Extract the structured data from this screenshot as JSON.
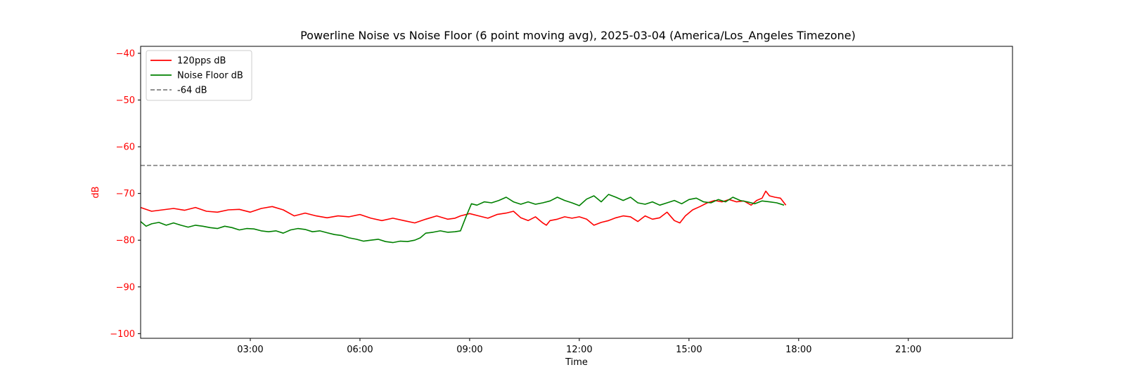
{
  "chart_data": {
    "type": "line",
    "title": "Powerline Noise vs Noise Floor (6 point moving avg), 2025-03-04 (America/Los_Angeles Timezone)",
    "xlabel": "Time",
    "ylabel": "dB",
    "ylabel_color": "#ff0000",
    "ytick_color": "#ff0000",
    "xlim": [
      0.0,
      23.85
    ],
    "ylim": [
      -101.0,
      -38.5
    ],
    "x_ticks": [
      3,
      6,
      9,
      12,
      15,
      18,
      21
    ],
    "x_tick_labels": [
      "03:00",
      "06:00",
      "09:00",
      "12:00",
      "15:00",
      "18:00",
      "21:00"
    ],
    "y_ticks": [
      -100,
      -90,
      -80,
      -70,
      -60,
      -50,
      -40
    ],
    "y_tick_labels": [
      "−100",
      "−90",
      "−80",
      "−70",
      "−60",
      "−50",
      "−40"
    ],
    "grid": false,
    "legend_position": "top-left",
    "reference_line": {
      "name": "-64 dB",
      "y": -64,
      "color": "#808080",
      "style": "dashed"
    },
    "series": [
      {
        "name": "120pps dB",
        "color": "#ff0000",
        "points": [
          [
            0.0,
            -73.0
          ],
          [
            0.3,
            -73.8
          ],
          [
            0.6,
            -73.5
          ],
          [
            0.9,
            -73.2
          ],
          [
            1.2,
            -73.6
          ],
          [
            1.5,
            -73.0
          ],
          [
            1.8,
            -73.8
          ],
          [
            2.1,
            -74.0
          ],
          [
            2.4,
            -73.5
          ],
          [
            2.7,
            -73.4
          ],
          [
            3.0,
            -74.0
          ],
          [
            3.3,
            -73.2
          ],
          [
            3.6,
            -72.8
          ],
          [
            3.9,
            -73.5
          ],
          [
            4.2,
            -74.8
          ],
          [
            4.5,
            -74.2
          ],
          [
            4.8,
            -74.8
          ],
          [
            5.1,
            -75.2
          ],
          [
            5.4,
            -74.8
          ],
          [
            5.7,
            -75.0
          ],
          [
            6.0,
            -74.5
          ],
          [
            6.3,
            -75.3
          ],
          [
            6.6,
            -75.8
          ],
          [
            6.9,
            -75.3
          ],
          [
            7.2,
            -75.8
          ],
          [
            7.5,
            -76.3
          ],
          [
            7.8,
            -75.5
          ],
          [
            8.1,
            -74.8
          ],
          [
            8.4,
            -75.5
          ],
          [
            8.6,
            -75.3
          ],
          [
            8.75,
            -74.8
          ],
          [
            9.0,
            -74.3
          ],
          [
            9.25,
            -74.8
          ],
          [
            9.5,
            -75.3
          ],
          [
            9.75,
            -74.5
          ],
          [
            10.0,
            -74.2
          ],
          [
            10.2,
            -73.8
          ],
          [
            10.4,
            -75.2
          ],
          [
            10.6,
            -75.8
          ],
          [
            10.8,
            -75.0
          ],
          [
            11.0,
            -76.3
          ],
          [
            11.1,
            -76.8
          ],
          [
            11.2,
            -75.8
          ],
          [
            11.4,
            -75.5
          ],
          [
            11.6,
            -75.0
          ],
          [
            11.8,
            -75.3
          ],
          [
            12.0,
            -75.0
          ],
          [
            12.2,
            -75.5
          ],
          [
            12.4,
            -76.8
          ],
          [
            12.6,
            -76.2
          ],
          [
            12.8,
            -75.8
          ],
          [
            13.0,
            -75.2
          ],
          [
            13.2,
            -74.8
          ],
          [
            13.4,
            -75.0
          ],
          [
            13.6,
            -76.0
          ],
          [
            13.8,
            -74.8
          ],
          [
            14.0,
            -75.5
          ],
          [
            14.2,
            -75.2
          ],
          [
            14.4,
            -74.0
          ],
          [
            14.6,
            -75.8
          ],
          [
            14.75,
            -76.3
          ],
          [
            14.9,
            -74.8
          ],
          [
            15.1,
            -73.5
          ],
          [
            15.3,
            -72.8
          ],
          [
            15.5,
            -72.0
          ],
          [
            15.7,
            -71.5
          ],
          [
            15.9,
            -71.8
          ],
          [
            16.1,
            -71.3
          ],
          [
            16.3,
            -71.8
          ],
          [
            16.5,
            -71.6
          ],
          [
            16.7,
            -72.5
          ],
          [
            16.85,
            -71.5
          ],
          [
            17.0,
            -71.0
          ],
          [
            17.1,
            -69.5
          ],
          [
            17.2,
            -70.5
          ],
          [
            17.35,
            -70.8
          ],
          [
            17.5,
            -71.0
          ],
          [
            17.65,
            -72.5
          ]
        ]
      },
      {
        "name": "Noise Floor dB",
        "color": "#008000",
        "points": [
          [
            0.0,
            -76.0
          ],
          [
            0.15,
            -77.0
          ],
          [
            0.3,
            -76.5
          ],
          [
            0.5,
            -76.2
          ],
          [
            0.7,
            -76.8
          ],
          [
            0.9,
            -76.3
          ],
          [
            1.1,
            -76.8
          ],
          [
            1.3,
            -77.2
          ],
          [
            1.5,
            -76.8
          ],
          [
            1.7,
            -77.0
          ],
          [
            1.9,
            -77.3
          ],
          [
            2.1,
            -77.5
          ],
          [
            2.3,
            -77.0
          ],
          [
            2.5,
            -77.3
          ],
          [
            2.7,
            -77.8
          ],
          [
            2.9,
            -77.5
          ],
          [
            3.1,
            -77.6
          ],
          [
            3.3,
            -78.0
          ],
          [
            3.5,
            -78.2
          ],
          [
            3.7,
            -78.0
          ],
          [
            3.9,
            -78.5
          ],
          [
            4.1,
            -77.8
          ],
          [
            4.3,
            -77.5
          ],
          [
            4.5,
            -77.7
          ],
          [
            4.7,
            -78.2
          ],
          [
            4.9,
            -78.0
          ],
          [
            5.1,
            -78.4
          ],
          [
            5.3,
            -78.8
          ],
          [
            5.5,
            -79.0
          ],
          [
            5.7,
            -79.5
          ],
          [
            5.9,
            -79.8
          ],
          [
            6.1,
            -80.2
          ],
          [
            6.3,
            -80.0
          ],
          [
            6.5,
            -79.8
          ],
          [
            6.7,
            -80.3
          ],
          [
            6.9,
            -80.5
          ],
          [
            7.1,
            -80.2
          ],
          [
            7.3,
            -80.3
          ],
          [
            7.5,
            -80.0
          ],
          [
            7.65,
            -79.5
          ],
          [
            7.8,
            -78.5
          ],
          [
            8.0,
            -78.3
          ],
          [
            8.2,
            -78.0
          ],
          [
            8.4,
            -78.3
          ],
          [
            8.6,
            -78.2
          ],
          [
            8.75,
            -78.0
          ],
          [
            8.9,
            -75.0
          ],
          [
            9.05,
            -72.2
          ],
          [
            9.2,
            -72.5
          ],
          [
            9.4,
            -71.8
          ],
          [
            9.6,
            -72.0
          ],
          [
            9.8,
            -71.5
          ],
          [
            10.0,
            -70.8
          ],
          [
            10.2,
            -71.8
          ],
          [
            10.4,
            -72.3
          ],
          [
            10.6,
            -71.8
          ],
          [
            10.8,
            -72.3
          ],
          [
            11.0,
            -72.0
          ],
          [
            11.2,
            -71.6
          ],
          [
            11.4,
            -70.8
          ],
          [
            11.6,
            -71.5
          ],
          [
            11.8,
            -72.0
          ],
          [
            12.0,
            -72.6
          ],
          [
            12.2,
            -71.2
          ],
          [
            12.4,
            -70.5
          ],
          [
            12.6,
            -71.8
          ],
          [
            12.8,
            -70.2
          ],
          [
            13.0,
            -70.8
          ],
          [
            13.2,
            -71.5
          ],
          [
            13.4,
            -70.8
          ],
          [
            13.6,
            -72.0
          ],
          [
            13.8,
            -72.3
          ],
          [
            14.0,
            -71.8
          ],
          [
            14.2,
            -72.5
          ],
          [
            14.4,
            -72.0
          ],
          [
            14.6,
            -71.5
          ],
          [
            14.8,
            -72.2
          ],
          [
            15.0,
            -71.3
          ],
          [
            15.2,
            -71.0
          ],
          [
            15.4,
            -71.8
          ],
          [
            15.6,
            -72.0
          ],
          [
            15.8,
            -71.3
          ],
          [
            16.0,
            -71.8
          ],
          [
            16.2,
            -70.8
          ],
          [
            16.4,
            -71.5
          ],
          [
            16.6,
            -71.8
          ],
          [
            16.8,
            -72.2
          ],
          [
            17.0,
            -71.6
          ],
          [
            17.2,
            -71.8
          ],
          [
            17.4,
            -72.0
          ],
          [
            17.6,
            -72.5
          ]
        ]
      }
    ]
  }
}
